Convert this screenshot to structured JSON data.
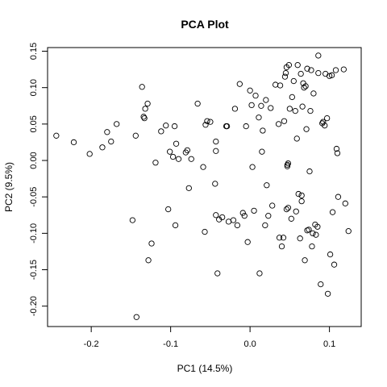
{
  "chart_data": {
    "type": "scatter",
    "title": "PCA Plot",
    "xlabel": "PC1 (14.5%)",
    "ylabel": "PC2 (9.5%)",
    "xlim": [
      -0.255,
      0.14
    ],
    "ylim": [
      -0.228,
      0.155
    ],
    "xticks": [
      -0.2,
      -0.1,
      0.0,
      0.1
    ],
    "xtick_labels": [
      "-0.2",
      "-0.1",
      "0.0",
      "0.1"
    ],
    "yticks": [
      -0.2,
      -0.15,
      -0.1,
      -0.05,
      0.0,
      0.05,
      0.1,
      0.15
    ],
    "ytick_labels": [
      "-0.20",
      "-0.15",
      "-0.10",
      "-0.05",
      "0.00",
      "0.05",
      "0.10",
      "0.15"
    ],
    "grid": false,
    "legend": false,
    "point_color": "#000000",
    "points": [
      [
        -0.244,
        0.034
      ],
      [
        -0.222,
        0.025
      ],
      [
        -0.202,
        0.009
      ],
      [
        -0.186,
        0.018
      ],
      [
        -0.18,
        0.039
      ],
      [
        -0.175,
        0.026
      ],
      [
        -0.168,
        0.05
      ],
      [
        -0.148,
        -0.082
      ],
      [
        -0.144,
        0.034
      ],
      [
        -0.143,
        -0.215
      ],
      [
        -0.136,
        0.101
      ],
      [
        -0.134,
        0.06
      ],
      [
        -0.132,
        0.071
      ],
      [
        -0.129,
        0.078
      ],
      [
        -0.133,
        0.058
      ],
      [
        -0.128,
        -0.137
      ],
      [
        -0.124,
        -0.114
      ],
      [
        -0.119,
        -0.003
      ],
      [
        -0.112,
        0.04
      ],
      [
        -0.106,
        0.048
      ],
      [
        -0.103,
        -0.067
      ],
      [
        -0.101,
        0.012
      ],
      [
        -0.097,
        0.005
      ],
      [
        -0.095,
        0.047
      ],
      [
        -0.094,
        -0.089
      ],
      [
        -0.093,
        0.023
      ],
      [
        -0.09,
        0.002
      ],
      [
        -0.081,
        0.011
      ],
      [
        -0.079,
        0.014
      ],
      [
        -0.077,
        -0.038
      ],
      [
        -0.074,
        0.002
      ],
      [
        -0.066,
        0.078
      ],
      [
        -0.059,
        -0.009
      ],
      [
        -0.057,
        -0.098
      ],
      [
        -0.056,
        0.049
      ],
      [
        -0.054,
        0.054
      ],
      [
        -0.05,
        0.053
      ],
      [
        -0.044,
        -0.032
      ],
      [
        -0.043,
        0.026
      ],
      [
        -0.043,
        0.013
      ],
      [
        -0.043,
        -0.075
      ],
      [
        -0.041,
        -0.155
      ],
      [
        -0.039,
        -0.081
      ],
      [
        -0.035,
        -0.078
      ],
      [
        -0.03,
        0.047
      ],
      [
        -0.029,
        0.047
      ],
      [
        -0.027,
        -0.084
      ],
      [
        -0.021,
        -0.082
      ],
      [
        -0.019,
        0.071
      ],
      [
        -0.016,
        -0.089
      ],
      [
        -0.013,
        0.105
      ],
      [
        -0.009,
        -0.072
      ],
      [
        -0.007,
        -0.076
      ],
      [
        -0.005,
        0.047
      ],
      [
        -0.003,
        -0.112
      ],
      [
        0.0,
        0.096
      ],
      [
        0.002,
        0.076
      ],
      [
        0.003,
        -0.009
      ],
      [
        0.005,
        -0.069
      ],
      [
        0.007,
        0.089
      ],
      [
        0.011,
        0.059
      ],
      [
        0.012,
        -0.155
      ],
      [
        0.014,
        0.075
      ],
      [
        0.016,
        0.041
      ],
      [
        0.019,
        -0.089
      ],
      [
        0.02,
        0.083
      ],
      [
        0.021,
        -0.034
      ],
      [
        0.023,
        -0.076
      ],
      [
        0.026,
        0.072
      ],
      [
        0.028,
        -0.062
      ],
      [
        0.032,
        0.104
      ],
      [
        0.036,
        0.05
      ],
      [
        0.037,
        -0.106
      ],
      [
        0.038,
        0.103
      ],
      [
        0.04,
        -0.118
      ],
      [
        0.042,
        -0.106
      ],
      [
        0.043,
        0.054
      ],
      [
        0.044,
        0.115
      ],
      [
        0.045,
        0.12
      ],
      [
        0.046,
        0.128
      ],
      [
        0.048,
        -0.065
      ],
      [
        0.046,
        -0.067
      ],
      [
        0.047,
        -0.006
      ],
      [
        0.047,
        -0.008
      ],
      [
        0.048,
        -0.004
      ],
      [
        0.049,
        0.131
      ],
      [
        0.05,
        0.071
      ],
      [
        0.052,
        -0.08
      ],
      [
        0.053,
        0.087
      ],
      [
        0.055,
        0.109
      ],
      [
        0.057,
        0.068
      ],
      [
        0.058,
        -0.07
      ],
      [
        0.059,
        0.03
      ],
      [
        0.06,
        0.131
      ],
      [
        0.061,
        -0.046
      ],
      [
        0.063,
        -0.107
      ],
      [
        0.064,
        0.119
      ],
      [
        0.065,
        -0.048
      ],
      [
        0.065,
        -0.056
      ],
      [
        0.066,
        0.074
      ],
      [
        0.067,
        0.106
      ],
      [
        0.068,
        0.1
      ],
      [
        0.069,
        -0.137
      ],
      [
        0.07,
        0.102
      ],
      [
        0.071,
        0.043
      ],
      [
        0.072,
        0.126
      ],
      [
        0.072,
        -0.096
      ],
      [
        0.074,
        -0.095
      ],
      [
        0.075,
        -0.015
      ],
      [
        0.076,
        0.068
      ],
      [
        0.077,
        0.124
      ],
      [
        0.078,
        -0.118
      ],
      [
        0.079,
        -0.1
      ],
      [
        0.08,
        0.092
      ],
      [
        0.082,
        -0.088
      ],
      [
        0.083,
        -0.102
      ],
      [
        0.085,
        -0.091
      ],
      [
        0.086,
        0.12
      ],
      [
        0.086,
        0.144
      ],
      [
        0.089,
        -0.17
      ],
      [
        0.091,
        0.051
      ],
      [
        0.092,
        0.053
      ],
      [
        0.094,
        0.048
      ],
      [
        0.095,
        0.119
      ],
      [
        0.097,
        0.058
      ],
      [
        0.098,
        -0.183
      ],
      [
        0.1,
        0.116
      ],
      [
        0.101,
        -0.129
      ],
      [
        0.103,
        0.117
      ],
      [
        0.104,
        -0.071
      ],
      [
        0.106,
        -0.143
      ],
      [
        0.108,
        0.124
      ],
      [
        0.109,
        0.016
      ],
      [
        0.11,
        0.01
      ],
      [
        0.111,
        -0.05
      ],
      [
        0.118,
        0.125
      ],
      [
        0.12,
        -0.059
      ],
      [
        0.124,
        -0.097
      ],
      [
        0.015,
        0.012
      ]
    ]
  }
}
